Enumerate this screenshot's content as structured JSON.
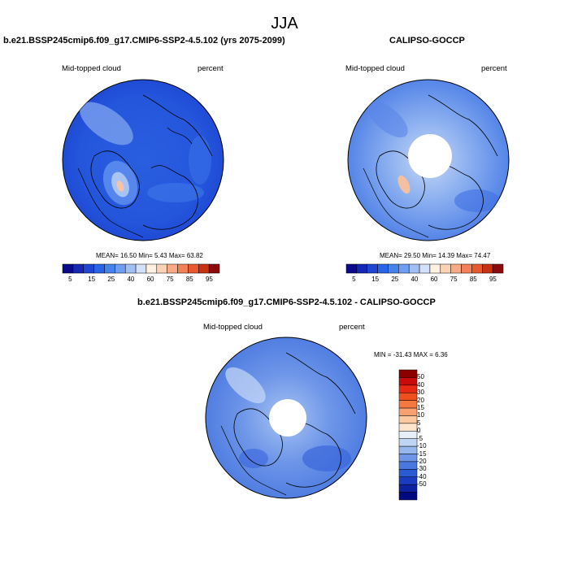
{
  "season_title": "JJA",
  "panels": {
    "model": {
      "title": "b.e21.BSSP245cmip6.f09_g17.CMIP6-SSP2-4.5.102 (yrs 2075-2099)",
      "var_label": "Mid-topped cloud",
      "units": "percent",
      "stats": "MEAN=  16.50  Min=   5.43  Max=  63.82"
    },
    "obs": {
      "title": "CALIPSO-GOCCP",
      "var_label": "Mid-topped cloud",
      "units": "percent",
      "stats": "MEAN=  29.50  Min=  14.39  Max=  74.47"
    },
    "diff": {
      "title": "b.e21.BSSP245cmip6.f09_g17.CMIP6-SSP2-4.5.102 - CALIPSO-GOCCP",
      "var_label": "Mid-topped cloud",
      "units": "percent",
      "minmax": "MIN = -31.43 MAX =   6.36"
    }
  },
  "abs_colorbar": {
    "colors": [
      "#0a0a8c",
      "#1428b4",
      "#1e46d2",
      "#2a64e6",
      "#4682ec",
      "#6e9ef0",
      "#a0c0f4",
      "#d2e0f8",
      "#fff0e0",
      "#fcd2b4",
      "#f8aa86",
      "#f28058",
      "#e65a32",
      "#c83214",
      "#8c0a0a"
    ],
    "labels": [
      "5",
      "15",
      "25",
      "40",
      "60",
      "75",
      "85",
      "95"
    ]
  },
  "diff_colorbar": {
    "colors": [
      "#8c0000",
      "#c80a0a",
      "#e62814",
      "#f0501e",
      "#f47840",
      "#f8a070",
      "#fcc8a0",
      "#fde4cc",
      "#e6eefa",
      "#c0d4f4",
      "#96b6ee",
      "#6e96e8",
      "#4a78e0",
      "#2a5ad4",
      "#1a3cc0",
      "#0c22a0",
      "#000a80"
    ],
    "labels": [
      "50",
      "40",
      "30",
      "20",
      "15",
      "10",
      "5",
      "0",
      "-5",
      "-10",
      "-15",
      "-20",
      "-30",
      "-40",
      "-50"
    ]
  }
}
